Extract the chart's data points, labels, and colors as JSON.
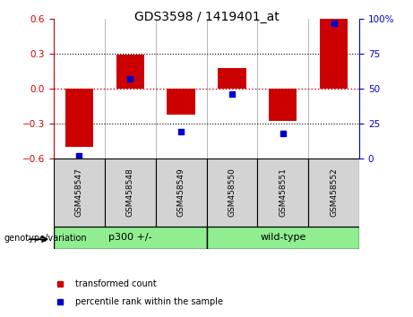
{
  "title": "GDS3598 / 1419401_at",
  "samples": [
    "GSM458547",
    "GSM458548",
    "GSM458549",
    "GSM458550",
    "GSM458551",
    "GSM458552"
  ],
  "transformed_counts": [
    -0.5,
    0.29,
    -0.22,
    0.18,
    -0.28,
    0.6
  ],
  "percentile_ranks": [
    2,
    57,
    19,
    46,
    18,
    97
  ],
  "ylim_left": [
    -0.6,
    0.6
  ],
  "ylim_right": [
    0,
    100
  ],
  "yticks_left": [
    -0.6,
    -0.3,
    0.0,
    0.3,
    0.6
  ],
  "yticks_right": [
    0,
    25,
    50,
    75,
    100
  ],
  "ytick_labels_right": [
    "0",
    "25",
    "50",
    "75",
    "100%"
  ],
  "bar_color": "#CC0000",
  "scatter_color": "#0000CC",
  "bar_width": 0.55,
  "background_label": "#D3D3D3",
  "background_group": "#90EE90",
  "groups": [
    {
      "label": "p300 +/-",
      "start": 0,
      "end": 3
    },
    {
      "label": "wild-type",
      "start": 3,
      "end": 6
    }
  ],
  "legend_items": [
    {
      "label": "transformed count",
      "color": "#CC0000"
    },
    {
      "label": "percentile rank within the sample",
      "color": "#0000CC"
    }
  ],
  "genotype_label": "genotype/variation"
}
